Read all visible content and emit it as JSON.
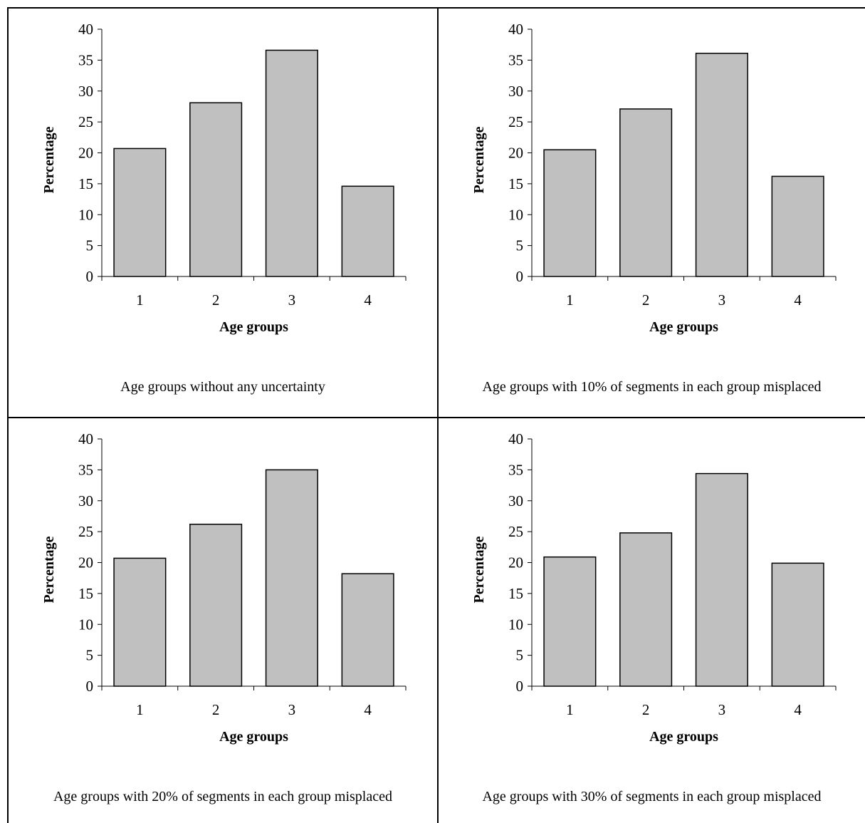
{
  "figure": {
    "colors": {
      "bar_fill": "#c0c0c0",
      "bar_stroke": "#000000",
      "axis": "#000000"
    }
  },
  "chart_data": [
    {
      "type": "bar",
      "caption": "Age groups without any uncertainty",
      "categories": [
        "1",
        "2",
        "3",
        "4"
      ],
      "values": [
        20.7,
        28.1,
        36.6,
        14.6
      ],
      "xlabel": "Age groups",
      "ylabel": "Percentage",
      "ylim": [
        0,
        40
      ],
      "yticks": [
        0,
        5,
        10,
        15,
        20,
        25,
        30,
        35,
        40
      ],
      "grid": false
    },
    {
      "type": "bar",
      "caption": "Age groups with 10% of segments in each group misplaced",
      "categories": [
        "1",
        "2",
        "3",
        "4"
      ],
      "values": [
        20.5,
        27.1,
        36.1,
        16.2
      ],
      "xlabel": "Age groups",
      "ylabel": "Percentage",
      "ylim": [
        0,
        40
      ],
      "yticks": [
        0,
        5,
        10,
        15,
        20,
        25,
        30,
        35,
        40
      ],
      "grid": false
    },
    {
      "type": "bar",
      "caption": "Age groups with 20% of segments in each group misplaced",
      "categories": [
        "1",
        "2",
        "3",
        "4"
      ],
      "values": [
        20.7,
        26.2,
        35.0,
        18.2
      ],
      "xlabel": "Age groups",
      "ylabel": "Percentage",
      "ylim": [
        0,
        40
      ],
      "yticks": [
        0,
        5,
        10,
        15,
        20,
        25,
        30,
        35,
        40
      ],
      "grid": false
    },
    {
      "type": "bar",
      "caption": "Age groups with 30% of segments in each group misplaced",
      "categories": [
        "1",
        "2",
        "3",
        "4"
      ],
      "values": [
        20.9,
        24.8,
        34.4,
        19.9
      ],
      "xlabel": "Age groups",
      "ylabel": "Percentage",
      "ylim": [
        0,
        40
      ],
      "yticks": [
        0,
        5,
        10,
        15,
        20,
        25,
        30,
        35,
        40
      ],
      "grid": false
    }
  ]
}
